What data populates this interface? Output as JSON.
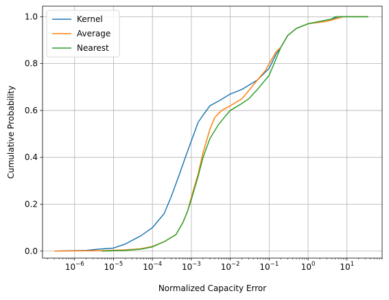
{
  "chart_data": {
    "type": "line",
    "xscale": "log",
    "xlim": [
      1.5e-07,
      80
    ],
    "ylim": [
      -0.03,
      1.045
    ],
    "xlabel": "Normalized Capacity Error",
    "ylabel": "Cumulative Probability",
    "grid": true,
    "legend_position": "top-left",
    "x_ticks": [
      {
        "value": 1e-06,
        "base": "10",
        "exp": "−6"
      },
      {
        "value": 1e-05,
        "base": "10",
        "exp": "−5"
      },
      {
        "value": 0.0001,
        "base": "10",
        "exp": "−4"
      },
      {
        "value": 0.001,
        "base": "10",
        "exp": "−3"
      },
      {
        "value": 0.01,
        "base": "10",
        "exp": "−2"
      },
      {
        "value": 0.1,
        "base": "10",
        "exp": "−1"
      },
      {
        "value": 1,
        "base": "10",
        "exp": "0"
      },
      {
        "value": 10,
        "base": "10",
        "exp": "1"
      }
    ],
    "y_ticks": [
      {
        "value": 0.0,
        "label": "0.0"
      },
      {
        "value": 0.2,
        "label": "0.2"
      },
      {
        "value": 0.4,
        "label": "0.4"
      },
      {
        "value": 0.6,
        "label": "0.6"
      },
      {
        "value": 0.8,
        "label": "0.8"
      },
      {
        "value": 1.0,
        "label": "1.0"
      }
    ],
    "series": [
      {
        "name": "Kernel",
        "color": "#1f77b4",
        "points": [
          [
            3e-07,
            0.0
          ],
          [
            2e-06,
            0.003
          ],
          [
            4e-06,
            0.008
          ],
          [
            1e-05,
            0.013
          ],
          [
            2e-05,
            0.03
          ],
          [
            5e-05,
            0.065
          ],
          [
            0.0001,
            0.1
          ],
          [
            0.0002,
            0.16
          ],
          [
            0.0003,
            0.23
          ],
          [
            0.0005,
            0.33
          ],
          [
            0.0007,
            0.4
          ],
          [
            0.001,
            0.47
          ],
          [
            0.0015,
            0.55
          ],
          [
            0.002,
            0.58
          ],
          [
            0.003,
            0.62
          ],
          [
            0.005,
            0.64
          ],
          [
            0.01,
            0.67
          ],
          [
            0.02,
            0.69
          ],
          [
            0.05,
            0.73
          ],
          [
            0.1,
            0.78
          ],
          [
            0.15,
            0.84
          ],
          [
            0.2,
            0.87
          ],
          [
            0.3,
            0.92
          ],
          [
            0.5,
            0.95
          ],
          [
            1,
            0.97
          ],
          [
            2,
            0.98
          ],
          [
            4,
            0.99
          ],
          [
            6,
            1.0
          ],
          [
            35,
            1.0
          ]
        ]
      },
      {
        "name": "Average",
        "color": "#ff7f0e",
        "points": [
          [
            3e-07,
            0.0
          ],
          [
            5e-06,
            0.002
          ],
          [
            2e-05,
            0.005
          ],
          [
            5e-05,
            0.01
          ],
          [
            0.0001,
            0.02
          ],
          [
            0.0002,
            0.04
          ],
          [
            0.0004,
            0.07
          ],
          [
            0.0006,
            0.12
          ],
          [
            0.0008,
            0.17
          ],
          [
            0.001,
            0.23
          ],
          [
            0.0015,
            0.33
          ],
          [
            0.002,
            0.42
          ],
          [
            0.003,
            0.52
          ],
          [
            0.004,
            0.57
          ],
          [
            0.006,
            0.6
          ],
          [
            0.01,
            0.62
          ],
          [
            0.02,
            0.65
          ],
          [
            0.05,
            0.73
          ],
          [
            0.08,
            0.77
          ],
          [
            0.1,
            0.8
          ],
          [
            0.15,
            0.85
          ],
          [
            0.2,
            0.87
          ],
          [
            0.3,
            0.92
          ],
          [
            0.5,
            0.95
          ],
          [
            1,
            0.97
          ],
          [
            3,
            0.98
          ],
          [
            5,
            0.99
          ],
          [
            8,
            1.0
          ],
          [
            35,
            1.0
          ]
        ]
      },
      {
        "name": "Nearest",
        "color": "#2ca02c",
        "points": [
          [
            5e-06,
            0.0
          ],
          [
            2e-05,
            0.003
          ],
          [
            5e-05,
            0.008
          ],
          [
            0.0001,
            0.018
          ],
          [
            0.0002,
            0.04
          ],
          [
            0.0004,
            0.07
          ],
          [
            0.0006,
            0.12
          ],
          [
            0.0008,
            0.17
          ],
          [
            0.001,
            0.22
          ],
          [
            0.0015,
            0.32
          ],
          [
            0.002,
            0.4
          ],
          [
            0.003,
            0.48
          ],
          [
            0.005,
            0.54
          ],
          [
            0.007,
            0.57
          ],
          [
            0.01,
            0.6
          ],
          [
            0.02,
            0.63
          ],
          [
            0.03,
            0.65
          ],
          [
            0.05,
            0.69
          ],
          [
            0.1,
            0.75
          ],
          [
            0.15,
            0.82
          ],
          [
            0.2,
            0.87
          ],
          [
            0.3,
            0.92
          ],
          [
            0.5,
            0.95
          ],
          [
            1,
            0.97
          ],
          [
            2,
            0.98
          ],
          [
            4,
            0.99
          ],
          [
            5,
            1.0
          ],
          [
            35,
            1.0
          ]
        ]
      }
    ]
  }
}
